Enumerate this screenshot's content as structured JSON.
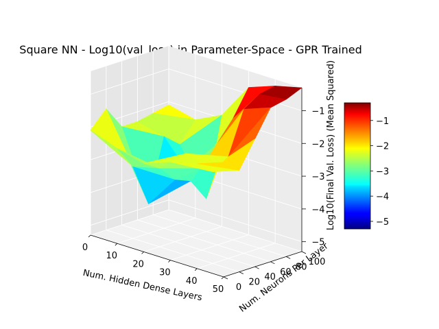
{
  "chart_data": {
    "type": "surface3d",
    "title": "Square NN - Log10(val_loss) in Parameter-Space - GPR Trained",
    "xlabel": "Num. Hidden Dense Layers",
    "ylabel": "Num. Neurons Per Layer",
    "zlabel": "Log10(Final Val. Loss)  (Mean Squared)",
    "x_ticks": [
      0,
      10,
      20,
      30,
      40,
      50
    ],
    "y_ticks": [
      0,
      20,
      40,
      60,
      80,
      100
    ],
    "z_ticks": [
      -5,
      -4,
      -3,
      -2,
      -1
    ],
    "xlim": [
      0,
      50
    ],
    "ylim": [
      0,
      100
    ],
    "zlim": [
      -5.3,
      -0.3
    ],
    "colormap": "jet",
    "colorbar": {
      "range": [
        -5.3,
        -0.3
      ],
      "ticks": [
        -5,
        -4,
        -3,
        -2,
        -1
      ]
    },
    "x_values": [
      0,
      10,
      20,
      30,
      40,
      50
    ],
    "y_values": [
      0,
      20,
      40,
      60,
      80,
      100
    ],
    "z_grid": [
      [
        -2.1,
        -2.4,
        -2.6,
        -2.3,
        -2.1,
        -1.8
      ],
      [
        -1.6,
        -3.1,
        -2.9,
        -2.2,
        -2.5,
        -2.2
      ],
      [
        -2.3,
        -4.4,
        -3.4,
        -2.8,
        -2.2,
        -1.4
      ],
      [
        -2.3,
        -2.5,
        -3.6,
        -2.2,
        -0.9,
        -0.6
      ],
      [
        -2.2,
        -2.9,
        -4.3,
        -1.6,
        -0.6,
        -0.5
      ],
      [
        -2.1,
        -2.3,
        -1.9,
        -0.8,
        -0.5,
        -0.3
      ]
    ],
    "grid": true
  }
}
